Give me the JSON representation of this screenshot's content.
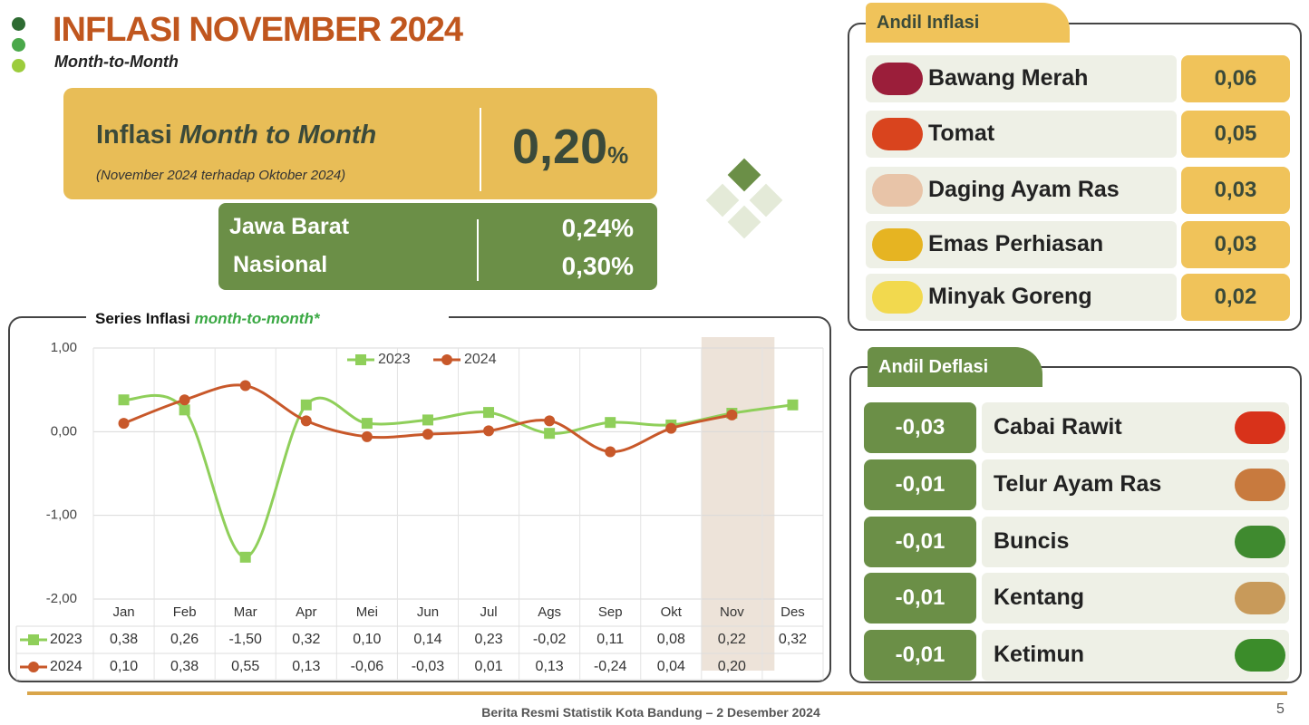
{
  "header": {
    "title": "INFLASI NOVEMBER 2024",
    "subtitle": "Month-to-Month"
  },
  "mtm": {
    "label": "Inflasi",
    "label_emphasis": "Month to Month",
    "note": "(November 2024 terhadap Oktober 2024)",
    "value": "0,20",
    "unit": "%"
  },
  "regions": [
    {
      "name": "Jawa Barat",
      "value": "0,24%"
    },
    {
      "name": "Nasional",
      "value": "0,30%"
    }
  ],
  "andil_inflasi": {
    "title": "Andil Inflasi",
    "items": [
      {
        "name": "Bawang Merah",
        "value": "0,06"
      },
      {
        "name": "Tomat",
        "value": "0,05"
      },
      {
        "name": "Daging Ayam Ras",
        "value": "0,03"
      },
      {
        "name": "Emas Perhiasan",
        "value": "0,03"
      },
      {
        "name": "Minyak Goreng",
        "value": "0,02"
      }
    ]
  },
  "andil_deflasi": {
    "title": "Andil Deflasi",
    "items": [
      {
        "name": "Cabai Rawit",
        "value": "-0,03"
      },
      {
        "name": "Telur Ayam Ras",
        "value": "-0,01"
      },
      {
        "name": "Buncis",
        "value": "-0,01"
      },
      {
        "name": "Kentang",
        "value": "-0,01"
      },
      {
        "name": "Ketimun",
        "value": "-0,01"
      }
    ]
  },
  "chart_data": {
    "type": "line",
    "title": "Series Inflasi",
    "title_emphasis": "month-to-month*",
    "categories": [
      "Jan",
      "Feb",
      "Mar",
      "Apr",
      "Mei",
      "Jun",
      "Jul",
      "Ags",
      "Sep",
      "Okt",
      "Nov",
      "Des"
    ],
    "series": [
      {
        "name": "2023",
        "color": "#8fcf5a",
        "marker": "square",
        "values": [
          0.38,
          0.26,
          -1.5,
          0.32,
          0.1,
          0.14,
          0.23,
          -0.02,
          0.11,
          0.08,
          0.22,
          0.32
        ],
        "value_labels": [
          "0,38",
          "0,26",
          "-1,50",
          "0,32",
          "0,10",
          "0,14",
          "0,23",
          "-0,02",
          "0,11",
          "0,08",
          "0,22",
          "0,32"
        ]
      },
      {
        "name": "2024",
        "color": "#c8582a",
        "marker": "circle",
        "values": [
          0.1,
          0.38,
          0.55,
          0.13,
          -0.06,
          -0.03,
          0.01,
          0.13,
          -0.24,
          0.04,
          0.2,
          null
        ],
        "value_labels": [
          "0,10",
          "0,38",
          "0,55",
          "0,13",
          "-0,06",
          "-0,03",
          "0,01",
          "0,13",
          "-0,24",
          "0,04",
          "0,20",
          null
        ]
      }
    ],
    "ylim": [
      -2,
      1
    ],
    "yticks": [
      {
        "value": -2,
        "label": "-2,00"
      },
      {
        "value": -1,
        "label": "-1,00"
      },
      {
        "value": 0,
        "label": "0,00"
      },
      {
        "value": 1,
        "label": "1,00"
      }
    ],
    "grid": true,
    "highlight": "Nov"
  },
  "footer": {
    "text": "Berita Resmi Statistik Kota Bandung –  2 Desember 2024",
    "page": "5"
  }
}
